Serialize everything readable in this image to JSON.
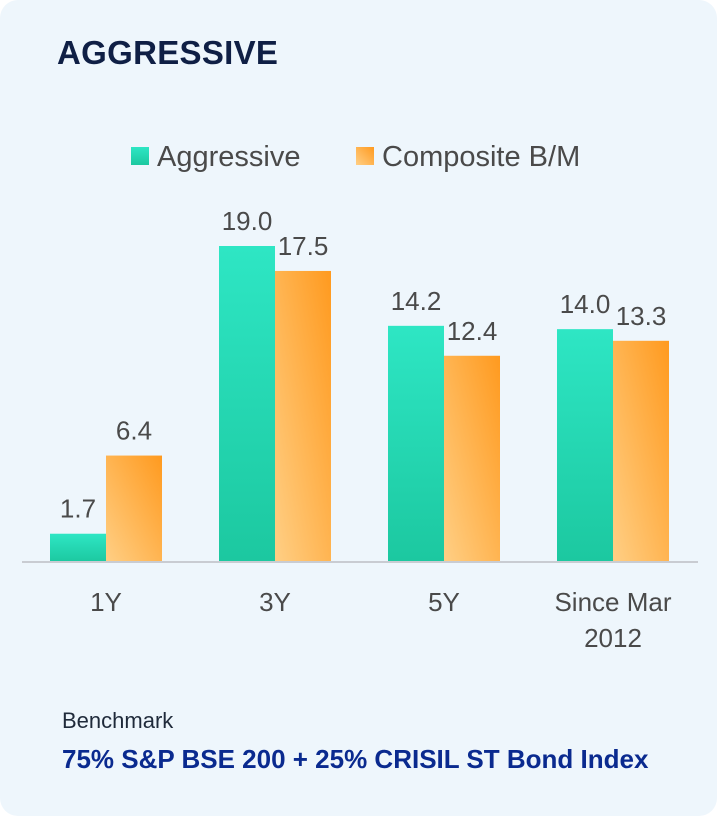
{
  "card": {
    "title": "AGGRESSIVE",
    "benchmark_label": "Benchmark",
    "benchmark_value": "75% S&P BSE 200 + 25% CRISIL ST Bond Index"
  },
  "colors": {
    "series1_top": "#2ee6c4",
    "series1_bottom": "#1cc8a0",
    "series2_left": "#ffcf85",
    "series2_right": "#ff9a1f",
    "axis": "#c9ccd2",
    "text": "#4a4a4a"
  },
  "chart_data": {
    "type": "bar",
    "title": "",
    "xlabel": "",
    "ylabel": "",
    "categories": [
      [
        "1Y"
      ],
      [
        "3Y"
      ],
      [
        "5Y"
      ],
      [
        "Since Mar",
        "2012"
      ]
    ],
    "series": [
      {
        "name": "Aggressive",
        "values": [
          1.7,
          19.0,
          14.2,
          14.0
        ]
      },
      {
        "name": "Composite B/M",
        "values": [
          6.4,
          17.5,
          12.4,
          13.3
        ]
      }
    ],
    "ylim": [
      0,
      20
    ],
    "grid": false,
    "legend": "top-center",
    "data_labels": true
  }
}
